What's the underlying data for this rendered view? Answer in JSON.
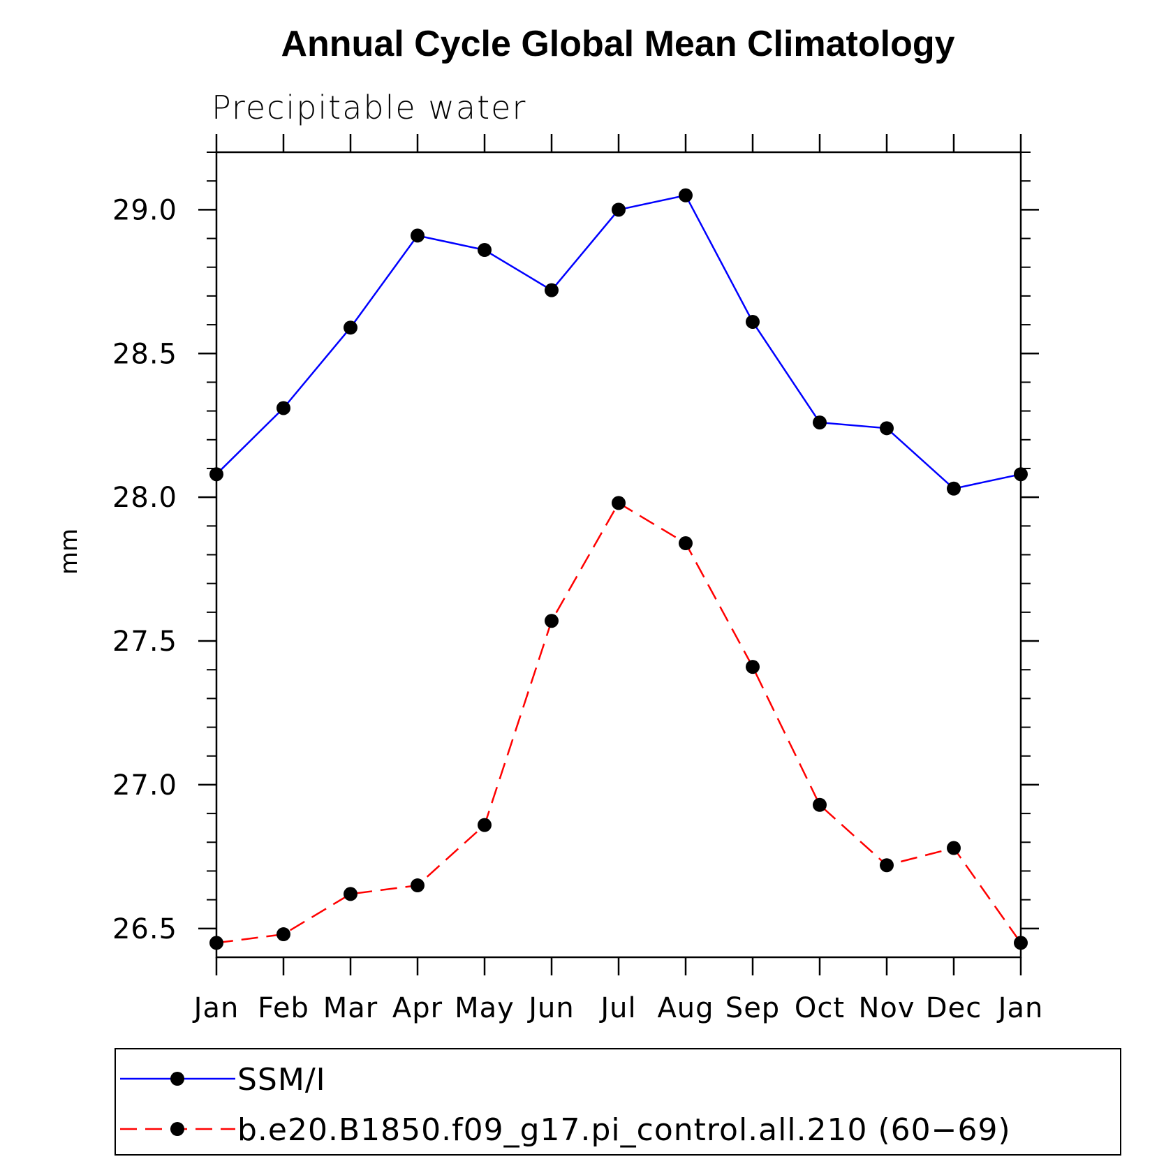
{
  "chart_data": {
    "type": "line",
    "title": "Annual Cycle Global Mean Climatology",
    "subtitle": "Precipitable water",
    "ylabel": "mm",
    "xlabel": "",
    "categories": [
      "Jan",
      "Feb",
      "Mar",
      "Apr",
      "May",
      "Jun",
      "Jul",
      "Aug",
      "Sep",
      "Oct",
      "Nov",
      "Dec",
      "Jan"
    ],
    "ylim": [
      26.4,
      29.2
    ],
    "yticks": [
      26.5,
      27.0,
      27.5,
      28.0,
      28.5,
      29.0
    ],
    "ytick_labels": [
      "26.5",
      "27.0",
      "27.5",
      "28.0",
      "28.5",
      "29.0"
    ],
    "grid": false,
    "legend_position": "bottom",
    "series": [
      {
        "name": "SSM/I",
        "color": "#0000ff",
        "dash": "solid",
        "marker": "filled-circle",
        "values": [
          28.08,
          28.31,
          28.59,
          28.91,
          28.86,
          28.72,
          29.0,
          29.05,
          28.61,
          28.26,
          28.24,
          28.03,
          28.08
        ]
      },
      {
        "name": "b.e20.B1850.f09_g17.pi_control.all.210 (60−69)",
        "color": "#ff0000",
        "dash": "dashed",
        "marker": "filled-circle",
        "values": [
          26.45,
          26.48,
          26.62,
          26.65,
          26.86,
          27.57,
          27.98,
          27.84,
          27.41,
          26.93,
          26.72,
          26.78,
          26.45
        ]
      }
    ]
  }
}
